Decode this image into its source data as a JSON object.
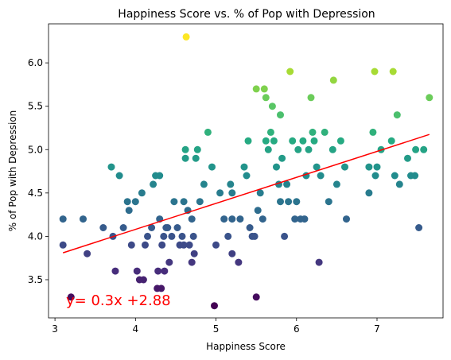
{
  "chart_data": {
    "type": "scatter",
    "title": "Happiness Score vs. % of Pop with Depression",
    "xlabel": "Happiness Score",
    "ylabel": "% of Pop with Depression",
    "xlim": [
      2.92,
      7.82
    ],
    "ylim": [
      3.06,
      6.45
    ],
    "xticks": [
      3,
      4,
      5,
      6,
      7
    ],
    "yticks": [
      3.5,
      4.0,
      4.5,
      5.0,
      5.5,
      6.0
    ],
    "ytick_labels": [
      "3.5",
      "4.0",
      "4.5",
      "5.0",
      "5.5",
      "6.0"
    ],
    "grid": false,
    "colormap": "viridis",
    "color_encodes": "% of Pop with Depression",
    "annotation": "y= 0.3x +2.88",
    "annotation_color": "#ff0000",
    "regression": {
      "slope": 0.3,
      "intercept": 2.88,
      "x_range": [
        3.1,
        7.65
      ],
      "color": "#ff0000"
    },
    "points": [
      [
        3.1,
        4.2
      ],
      [
        3.1,
        3.9
      ],
      [
        3.2,
        3.3
      ],
      [
        3.35,
        4.2
      ],
      [
        3.4,
        3.8
      ],
      [
        3.6,
        4.1
      ],
      [
        3.7,
        4.8
      ],
      [
        3.72,
        4.0
      ],
      [
        3.75,
        3.6
      ],
      [
        3.8,
        4.7
      ],
      [
        3.85,
        4.1
      ],
      [
        3.9,
        4.4
      ],
      [
        3.92,
        4.3
      ],
      [
        3.95,
        3.9
      ],
      [
        4.0,
        4.4
      ],
      [
        4.02,
        3.6
      ],
      [
        4.05,
        3.5
      ],
      [
        4.08,
        4.5
      ],
      [
        4.1,
        3.5
      ],
      [
        4.12,
        3.9
      ],
      [
        4.15,
        4.0
      ],
      [
        4.2,
        4.1
      ],
      [
        4.22,
        4.6
      ],
      [
        4.25,
        4.7
      ],
      [
        4.27,
        3.4
      ],
      [
        4.28,
        3.6
      ],
      [
        4.3,
        4.7
      ],
      [
        4.3,
        4.2
      ],
      [
        4.32,
        3.4
      ],
      [
        4.33,
        3.9
      ],
      [
        4.35,
        4.0
      ],
      [
        4.36,
        3.6
      ],
      [
        4.38,
        4.1
      ],
      [
        4.4,
        4.1
      ],
      [
        4.42,
        3.7
      ],
      [
        4.45,
        4.0
      ],
      [
        4.48,
        4.4
      ],
      [
        4.52,
        4.1
      ],
      [
        4.55,
        3.9
      ],
      [
        4.58,
        4.0
      ],
      [
        4.6,
        4.4
      ],
      [
        4.6,
        3.9
      ],
      [
        4.62,
        4.9
      ],
      [
        4.62,
        5.0
      ],
      [
        4.63,
        6.3
      ],
      [
        4.65,
        4.3
      ],
      [
        4.67,
        3.9
      ],
      [
        4.7,
        4.2
      ],
      [
        4.7,
        3.7
      ],
      [
        4.72,
        4.0
      ],
      [
        4.73,
        3.8
      ],
      [
        4.75,
        4.9
      ],
      [
        4.77,
        5.0
      ],
      [
        4.8,
        4.4
      ],
      [
        4.85,
        4.6
      ],
      [
        4.9,
        5.2
      ],
      [
        4.95,
        4.8
      ],
      [
        4.98,
        3.2
      ],
      [
        5.0,
        3.9
      ],
      [
        5.05,
        4.5
      ],
      [
        5.1,
        4.2
      ],
      [
        5.15,
        4.0
      ],
      [
        5.18,
        4.6
      ],
      [
        5.2,
        4.5
      ],
      [
        5.2,
        3.8
      ],
      [
        5.2,
        4.2
      ],
      [
        5.28,
        3.7
      ],
      [
        5.3,
        4.2
      ],
      [
        5.35,
        4.8
      ],
      [
        5.38,
        4.7
      ],
      [
        5.4,
        5.1
      ],
      [
        5.42,
        4.1
      ],
      [
        5.45,
        4.0
      ],
      [
        5.48,
        4.0
      ],
      [
        5.5,
        5.7
      ],
      [
        5.5,
        3.3
      ],
      [
        5.52,
        4.3
      ],
      [
        5.55,
        4.5
      ],
      [
        5.58,
        4.2
      ],
      [
        5.6,
        5.7
      ],
      [
        5.62,
        5.6
      ],
      [
        5.62,
        5.1
      ],
      [
        5.65,
        5.0
      ],
      [
        5.68,
        5.2
      ],
      [
        5.7,
        5.5
      ],
      [
        5.72,
        5.1
      ],
      [
        5.75,
        4.8
      ],
      [
        5.78,
        4.6
      ],
      [
        5.8,
        5.4
      ],
      [
        5.8,
        4.4
      ],
      [
        5.82,
        4.9
      ],
      [
        5.85,
        4.0
      ],
      [
        5.88,
        4.6
      ],
      [
        5.9,
        4.4
      ],
      [
        5.92,
        5.9
      ],
      [
        5.95,
        5.1
      ],
      [
        5.98,
        4.2
      ],
      [
        6.0,
        4.4
      ],
      [
        6.02,
        5.0
      ],
      [
        6.05,
        4.2
      ],
      [
        6.08,
        5.1
      ],
      [
        6.1,
        4.2
      ],
      [
        6.12,
        4.7
      ],
      [
        6.15,
        5.0
      ],
      [
        6.18,
        5.6
      ],
      [
        6.2,
        5.2
      ],
      [
        6.22,
        5.1
      ],
      [
        6.25,
        4.8
      ],
      [
        6.28,
        3.7
      ],
      [
        6.3,
        4.7
      ],
      [
        6.35,
        5.2
      ],
      [
        6.4,
        4.4
      ],
      [
        6.45,
        5.0
      ],
      [
        6.46,
        5.8
      ],
      [
        6.5,
        4.6
      ],
      [
        6.55,
        5.1
      ],
      [
        6.6,
        4.8
      ],
      [
        6.62,
        4.2
      ],
      [
        6.9,
        4.5
      ],
      [
        6.9,
        4.8
      ],
      [
        6.95,
        5.2
      ],
      [
        6.97,
        5.9
      ],
      [
        6.98,
        4.7
      ],
      [
        7.0,
        4.8
      ],
      [
        7.05,
        5.0
      ],
      [
        7.18,
        5.1
      ],
      [
        7.2,
        5.9
      ],
      [
        7.22,
        4.7
      ],
      [
        7.25,
        5.4
      ],
      [
        7.28,
        4.6
      ],
      [
        7.38,
        4.9
      ],
      [
        7.42,
        4.7
      ],
      [
        7.48,
        5.0
      ],
      [
        7.47,
        4.7
      ],
      [
        7.52,
        4.1
      ],
      [
        7.58,
        5.0
      ],
      [
        7.65,
        5.6
      ]
    ]
  }
}
